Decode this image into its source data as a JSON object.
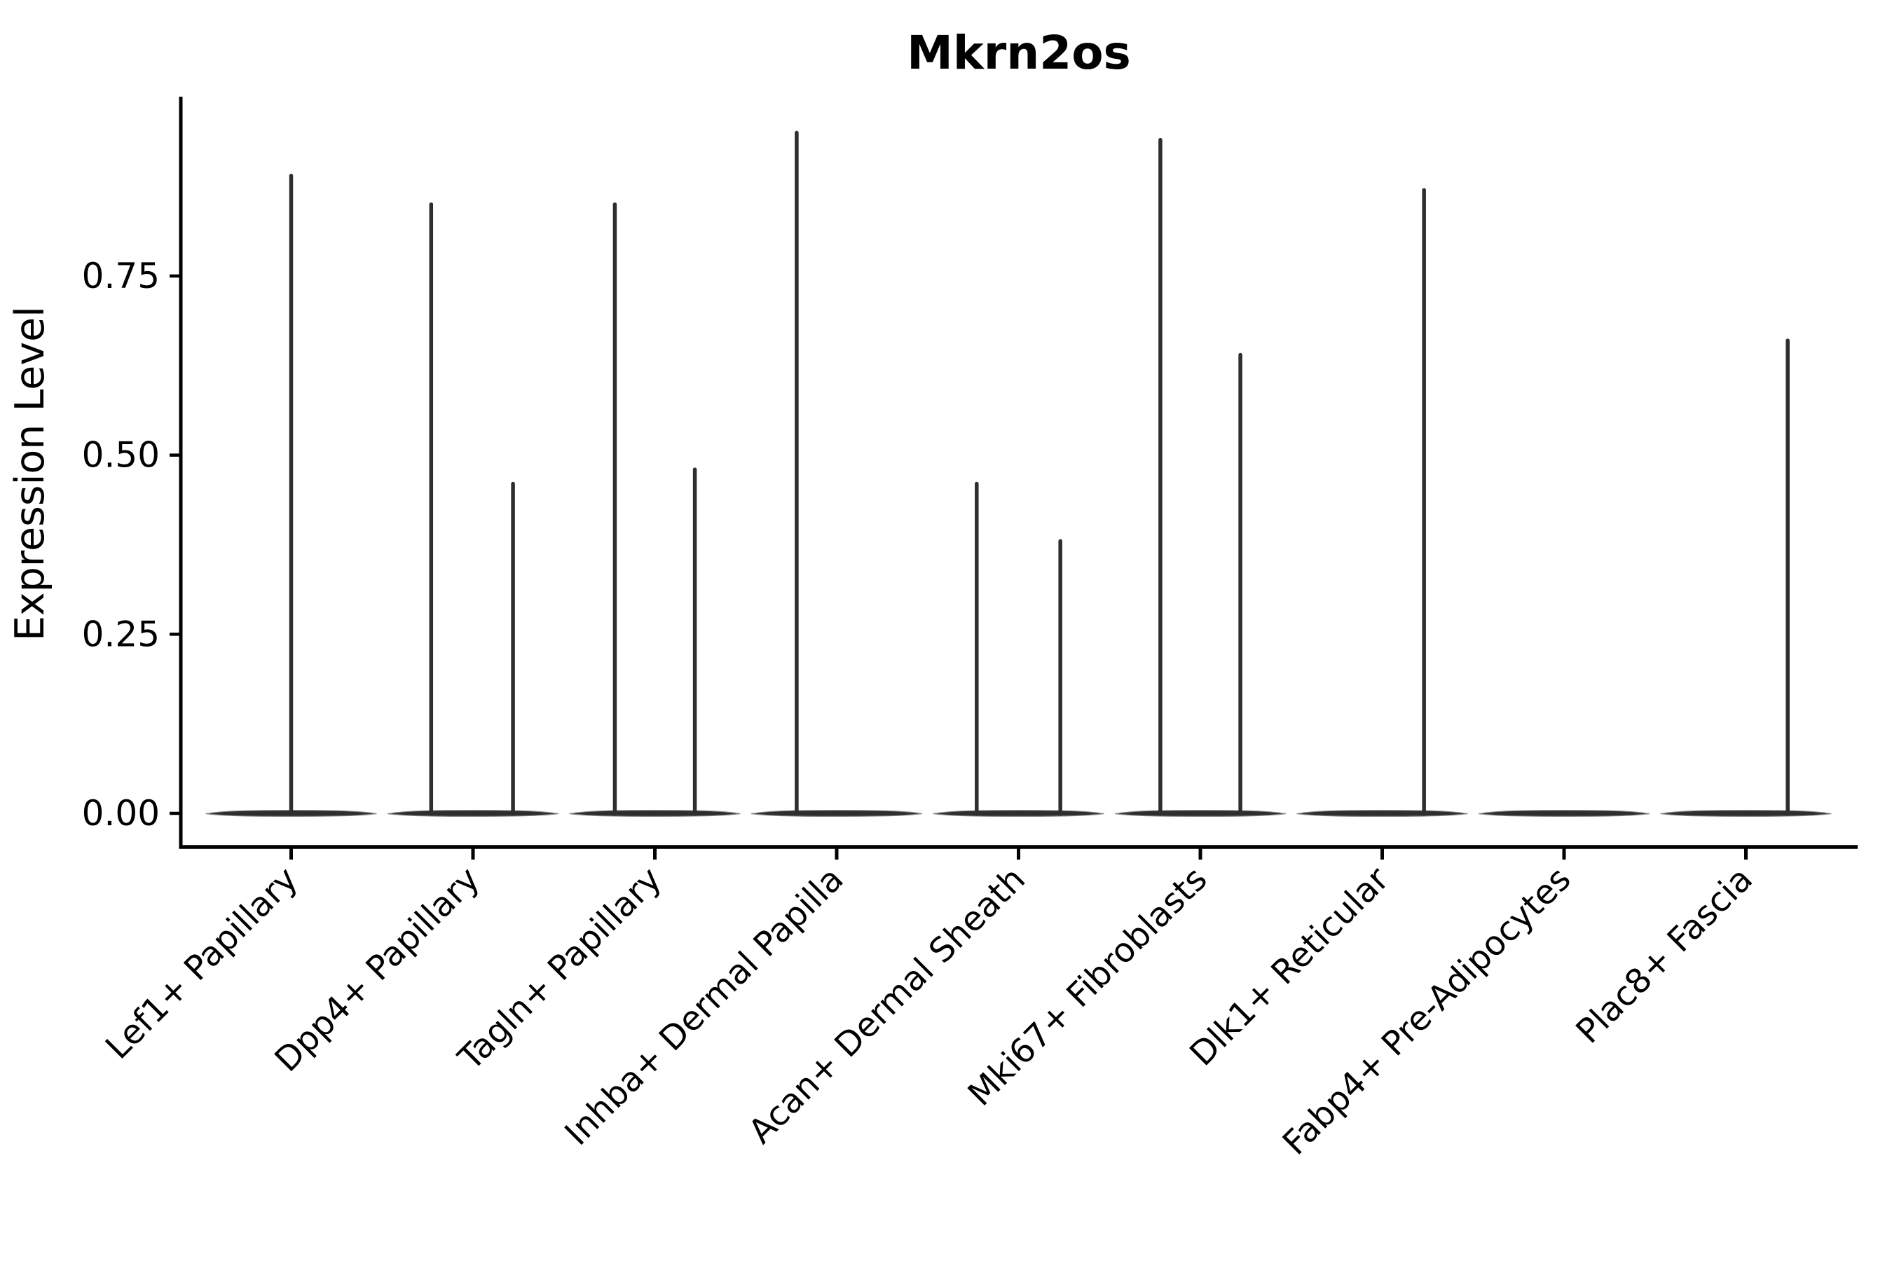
{
  "figure": {
    "background_color": "#ffffff",
    "title": "Mkrn2os",
    "y_axis_label": "Expression Level"
  },
  "chart_data": {
    "type": "violin",
    "title": "Mkrn2os",
    "xlabel": "",
    "ylabel": "Expression Level",
    "ylim": [
      -0.047,
      1.0
    ],
    "y_ticks": [
      {
        "value": 0.0,
        "label": "0.00"
      },
      {
        "value": 0.25,
        "label": "0.25"
      },
      {
        "value": 0.5,
        "label": "0.50"
      },
      {
        "value": 0.75,
        "label": "0.75"
      }
    ],
    "grid": "off",
    "legend": "none",
    "x_tick_rotation": 45,
    "violin_color": "#2e2e2e",
    "axis_color": "#000000",
    "violin_style": "flat base at 0 with thin density spikes up to max expression",
    "categories": [
      {
        "label": "Lef1+ Papillary",
        "base_at_zero": true,
        "spikes": [
          {
            "offset": 0.0,
            "max": 0.89
          }
        ]
      },
      {
        "label": "Dpp4+ Papillary",
        "base_at_zero": true,
        "spikes": [
          {
            "offset": -0.23,
            "max": 0.85
          },
          {
            "offset": 0.22,
            "max": 0.46
          }
        ]
      },
      {
        "label": "Tagln+ Papillary",
        "base_at_zero": true,
        "spikes": [
          {
            "offset": -0.22,
            "max": 0.85
          },
          {
            "offset": 0.22,
            "max": 0.48
          }
        ]
      },
      {
        "label": "Inhba+ Dermal Papilla",
        "base_at_zero": true,
        "spikes": [
          {
            "offset": -0.22,
            "max": 0.95
          }
        ]
      },
      {
        "label": "Acan+ Dermal Sheath",
        "base_at_zero": true,
        "spikes": [
          {
            "offset": -0.23,
            "max": 0.46
          },
          {
            "offset": 0.23,
            "max": 0.38
          }
        ]
      },
      {
        "label": "Mki67+ Fibroblasts",
        "base_at_zero": true,
        "spikes": [
          {
            "offset": -0.22,
            "max": 0.94
          },
          {
            "offset": 0.22,
            "max": 0.64
          }
        ]
      },
      {
        "label": "Dlk1+ Reticular",
        "base_at_zero": true,
        "spikes": [
          {
            "offset": 0.23,
            "max": 0.87
          }
        ]
      },
      {
        "label": "Fabp4+ Pre-Adipocytes",
        "base_at_zero": true,
        "spikes": []
      },
      {
        "label": "Plac8+ Fascia",
        "base_at_zero": true,
        "spikes": [
          {
            "offset": 0.23,
            "max": 0.66
          }
        ]
      }
    ]
  }
}
